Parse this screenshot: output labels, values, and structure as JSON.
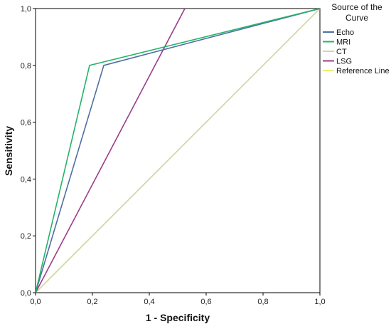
{
  "chart_data": {
    "type": "line",
    "title": "",
    "xlabel": "1 - Specificity",
    "ylabel": "Sensitivity",
    "xlim": [
      0,
      1
    ],
    "ylim": [
      0,
      1
    ],
    "x_ticks": [
      "0,0",
      "0,2",
      "0,4",
      "0,6",
      "0,8",
      "1,0"
    ],
    "y_ticks": [
      "0,0",
      "0,2",
      "0,4",
      "0,6",
      "0,8",
      "1,0"
    ],
    "grid": false,
    "legend": {
      "title_line1": "Source of the",
      "title_line2": "Curve",
      "placement": "right"
    },
    "series": [
      {
        "name": "Echo",
        "color": "#4e6fa3",
        "x": [
          0,
          0.24,
          1
        ],
        "y": [
          0,
          0.8,
          1
        ]
      },
      {
        "name": "MRI",
        "color": "#26b36b",
        "x": [
          0,
          0.19,
          1
        ],
        "y": [
          0,
          0.8,
          1
        ]
      },
      {
        "name": "CT",
        "color": "#d3d3b0",
        "x": [
          0,
          1
        ],
        "y": [
          0,
          1
        ]
      },
      {
        "name": "LSG",
        "color": "#9b3d8a",
        "x": [
          0,
          0.525
        ],
        "y": [
          0,
          1
        ]
      },
      {
        "name": "Reference Line",
        "color": "#f0ef6e",
        "x": [
          0,
          1
        ],
        "y": [
          0,
          1
        ]
      }
    ]
  }
}
